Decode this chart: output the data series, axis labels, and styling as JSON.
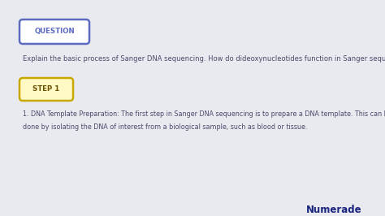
{
  "background_color": "#e8eaf0",
  "question_label": "QUESTION",
  "question_label_color": "#5c6bc0",
  "question_label_bg": "#ffffff",
  "question_label_border": "#5c6bc0",
  "question_text": "Explain the basic process of Sanger DNA sequencing. How do dideoxynucleotides function in Sanger sequencing?",
  "question_text_color": "#4a4a6a",
  "step_label": "STEP 1",
  "step_label_color": "#6b5000",
  "step_label_bg": "#fff9c4",
  "step_label_border": "#c8a800",
  "step_text_line1": "1. DNA Template Preparation: The first step in Sanger DNA sequencing is to prepare a DNA template. This can be",
  "step_text_line2": "done by isolating the DNA of interest from a biological sample, such as blood or tissue.",
  "step_text_color": "#4a4a6a",
  "numerade_text": "Numerade",
  "numerade_color": "#1a237e",
  "fig_width": 4.74,
  "fig_height": 2.66,
  "dpi": 100
}
